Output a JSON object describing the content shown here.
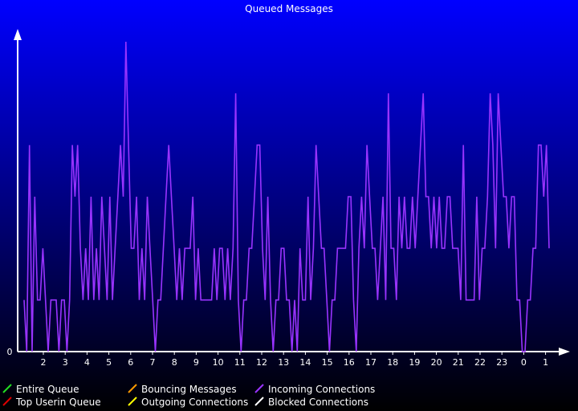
{
  "chart_data": {
    "type": "line",
    "title": "Queued Messages",
    "xlabel": "",
    "ylabel": "",
    "x_ticks": [
      "2",
      "3",
      "4",
      "5",
      "6",
      "7",
      "8",
      "9",
      "10",
      "11",
      "12",
      "13",
      "14",
      "15",
      "16",
      "17",
      "18",
      "19",
      "20",
      "21",
      "22",
      "23",
      "0",
      "1"
    ],
    "y_ticks": [
      "0"
    ],
    "ylim": [
      0,
      6
    ],
    "grid": false,
    "legend_position": "bottom",
    "series": [
      {
        "name": "Entire Queue",
        "color": "#22dd22",
        "values": []
      },
      {
        "name": "Top Userin Queue",
        "color": "#dd0000",
        "values": []
      },
      {
        "name": "Bouncing Messages",
        "color": "#ff9900",
        "values": []
      },
      {
        "name": "Outgoing Connections",
        "color": "#ffff00",
        "values": []
      },
      {
        "name": "Incoming Connections",
        "color": "#9933ff",
        "values": [
          1,
          0,
          4,
          0,
          3,
          1,
          1,
          2,
          1,
          0,
          1,
          1,
          1,
          0,
          1,
          1,
          0,
          1,
          4,
          3,
          4,
          2,
          1,
          2,
          1,
          3,
          1,
          2,
          1,
          3,
          2,
          1,
          3,
          1,
          2,
          3,
          4,
          3,
          6,
          4,
          2,
          2,
          3,
          1,
          2,
          1,
          3,
          2,
          1,
          0,
          1,
          1,
          2,
          3,
          4,
          3,
          2,
          1,
          2,
          1,
          2,
          2,
          2,
          3,
          1,
          2,
          1,
          1,
          1,
          1,
          1,
          2,
          1,
          2,
          2,
          1,
          2,
          1,
          2,
          5,
          1,
          0,
          1,
          1,
          2,
          2,
          3,
          4,
          4,
          2,
          1,
          3,
          1,
          0,
          1,
          1,
          2,
          2,
          1,
          1,
          0,
          1,
          0,
          2,
          1,
          1,
          3,
          1,
          2,
          4,
          3,
          2,
          2,
          1,
          0,
          1,
          1,
          2,
          2,
          2,
          2,
          3,
          3,
          1,
          0,
          2,
          3,
          2,
          4,
          3,
          2,
          2,
          1,
          2,
          3,
          1,
          5,
          2,
          2,
          1,
          3,
          2,
          3,
          2,
          2,
          3,
          2,
          3,
          4,
          5,
          3,
          3,
          2,
          3,
          2,
          3,
          2,
          2,
          3,
          3,
          2,
          2,
          2,
          1,
          4,
          1,
          1,
          1,
          1,
          3,
          1,
          2,
          2,
          3,
          5,
          4,
          2,
          5,
          4,
          3,
          3,
          2,
          3,
          3,
          1,
          1,
          0,
          0,
          1,
          1,
          2,
          2,
          4,
          4,
          3,
          4,
          2
        ]
      },
      {
        "name": "Blocked Connections",
        "color": "#ffffff",
        "values": []
      }
    ]
  }
}
